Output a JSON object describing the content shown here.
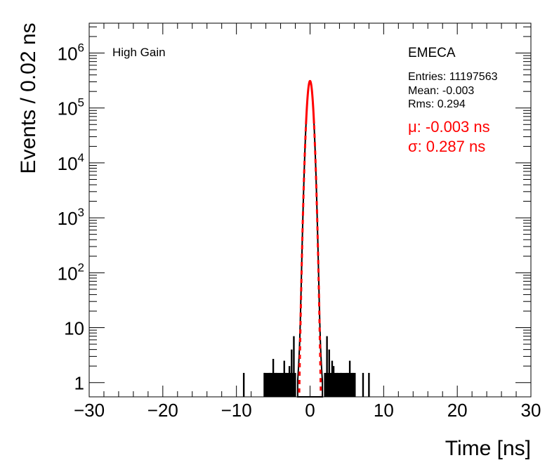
{
  "chart_data": {
    "type": "histogram",
    "xlabel": "Time [ns]",
    "ylabel": "Events / 0.02 ns",
    "xlim": [
      -30,
      30
    ],
    "ylim": [
      0.55,
      3500000
    ],
    "yscale": "log",
    "xticks": [
      -30,
      -20,
      -10,
      0,
      10,
      20,
      30
    ],
    "xtick_labels": [
      "−30",
      "−20",
      "−10",
      "0",
      "10",
      "20",
      "30"
    ],
    "yticks": [
      {
        "value": 1000000,
        "base": "10",
        "exp": "6"
      },
      {
        "value": 100000,
        "base": "10",
        "exp": "5"
      },
      {
        "value": 10000,
        "base": "10",
        "exp": "4"
      },
      {
        "value": 1000,
        "base": "10",
        "exp": "3"
      },
      {
        "value": 100,
        "base": "10",
        "exp": "2"
      },
      {
        "value": 10,
        "base": "10",
        "exp": ""
      },
      {
        "value": 1,
        "base": "1",
        "exp": ""
      }
    ],
    "grid": false,
    "label_left": "High Gain",
    "label_right": "EMECA",
    "stats": {
      "entries": "Entries: 11197563",
      "mean": "Mean: -0.003",
      "rms": "Rms: 0.294"
    },
    "fit": {
      "mu_text": "μ: -0.003 ns",
      "sigma_text": "σ: 0.287 ns",
      "mu": -0.003,
      "sigma": 0.287,
      "peak": 310000,
      "color": "#ff0000"
    },
    "histogram_color": "#000000",
    "tail_spikes": [
      {
        "x": -9.0,
        "y": 1.5
      },
      {
        "x": -6.2,
        "y": 1.5
      },
      {
        "x": -5.5,
        "y": 1.5
      },
      {
        "x": -5.0,
        "y": 2.7
      },
      {
        "x": -4.6,
        "y": 1.5
      },
      {
        "x": -3.5,
        "y": 2.5
      },
      {
        "x": -3.2,
        "y": 1.5
      },
      {
        "x": -2.8,
        "y": 2.0
      },
      {
        "x": -2.5,
        "y": 4.0
      },
      {
        "x": -2.2,
        "y": 7.0
      },
      {
        "x": 2.3,
        "y": 7.0
      },
      {
        "x": 2.6,
        "y": 4.0
      },
      {
        "x": 3.0,
        "y": 2.5
      },
      {
        "x": 3.2,
        "y": 2.0
      },
      {
        "x": 3.7,
        "y": 1.5
      },
      {
        "x": 4.2,
        "y": 1.5
      },
      {
        "x": 5.0,
        "y": 1.5
      },
      {
        "x": 5.4,
        "y": 2.5
      },
      {
        "x": 5.8,
        "y": 1.5
      },
      {
        "x": 7.2,
        "y": 1.5
      },
      {
        "x": 8.0,
        "y": 1.5
      }
    ],
    "tail_band": [
      {
        "from": -6.3,
        "to": -1.9,
        "y": 1.5
      },
      {
        "from": 1.9,
        "to": 6.2,
        "y": 1.5
      }
    ]
  }
}
